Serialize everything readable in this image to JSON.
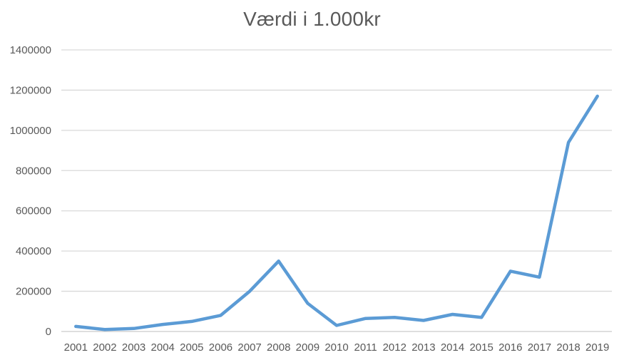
{
  "chart_data": {
    "type": "line",
    "title": "Værdi i 1.000kr",
    "categories": [
      "2001",
      "2002",
      "2003",
      "2004",
      "2005",
      "2006",
      "2007",
      "2008",
      "2009",
      "2010",
      "2011",
      "2012",
      "2013",
      "2014",
      "2015",
      "2016",
      "2017",
      "2018",
      "2019"
    ],
    "values": [
      25000,
      10000,
      15000,
      35000,
      50000,
      80000,
      200000,
      350000,
      140000,
      30000,
      65000,
      70000,
      55000,
      85000,
      70000,
      300000,
      270000,
      940000,
      1170000
    ],
    "xlabel": "",
    "ylabel": "",
    "ylim": [
      0,
      1400000
    ],
    "ytick_step": 200000,
    "ytick_labels": [
      "0",
      "200000",
      "400000",
      "600000",
      "800000",
      "1000000",
      "1200000",
      "1400000"
    ],
    "grid": true,
    "legend_position": "none",
    "colors": {
      "line": "#5B9BD5",
      "gridline": "#D9D9D9",
      "axis_line": "#C9C9C9",
      "tick_text": "#595959",
      "title_text": "#595959"
    }
  }
}
